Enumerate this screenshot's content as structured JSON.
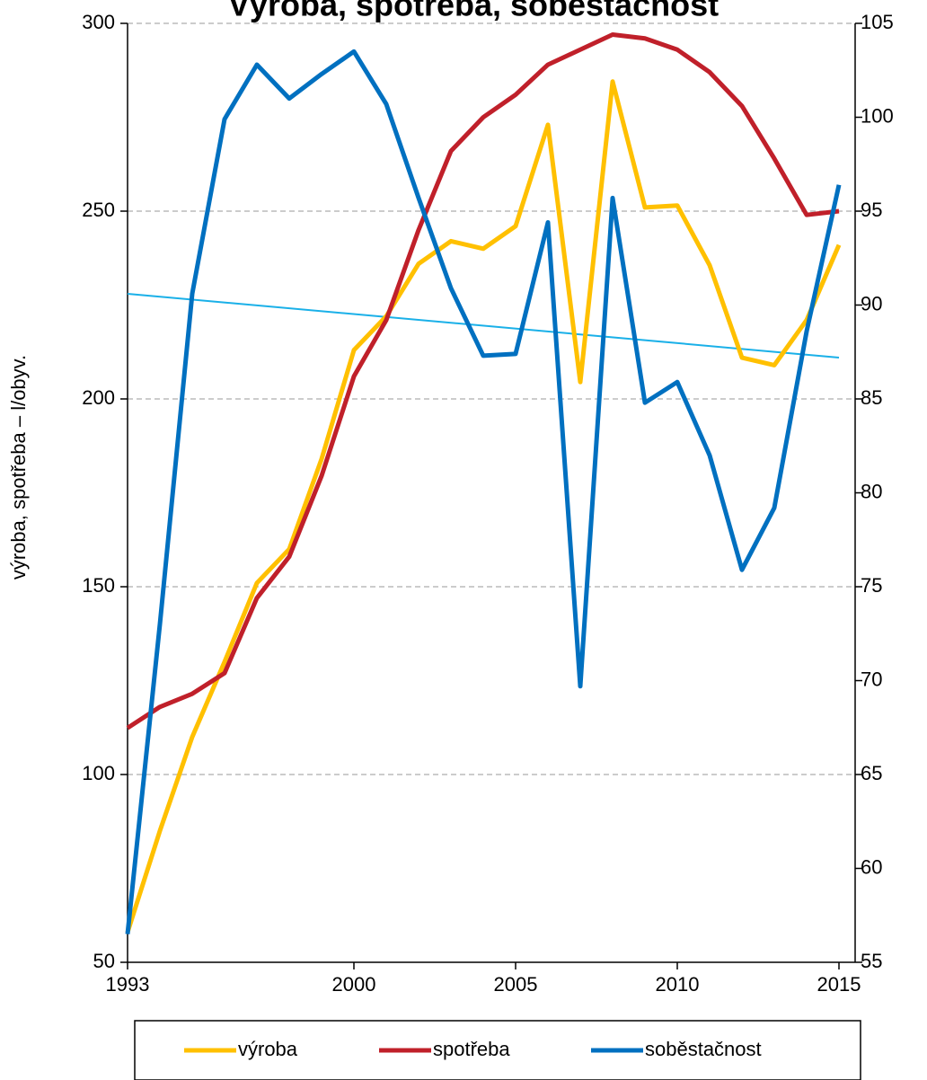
{
  "chart_data": {
    "type": "line",
    "title": "Výroba, spotřeba, soběstačnost",
    "y_label": "výroba, spotřeba – l/obyv.",
    "x": [
      1993,
      1994,
      1995,
      1996,
      1997,
      1998,
      1999,
      2000,
      2001,
      2002,
      2003,
      2004,
      2005,
      2006,
      2007,
      2008,
      2009,
      2010,
      2011,
      2012,
      2013,
      2014,
      2015
    ],
    "series": [
      {
        "name": "výroba",
        "color": "#FFC000",
        "values": [
          58,
          85,
          110,
          130,
          151,
          160,
          184,
          213,
          222,
          236,
          242,
          240,
          246,
          273,
          204.5,
          284.5,
          251,
          251.5,
          235.6,
          211,
          209,
          221,
          241
        ]
      },
      {
        "name": "spotřeba",
        "color": "#C0202A",
        "values": [
          112.4,
          118,
          121.5,
          127,
          147,
          158,
          179.5,
          206,
          221,
          245,
          266,
          275,
          281,
          289,
          293,
          297,
          296,
          293,
          287,
          278,
          264,
          249,
          250
        ]
      },
      {
        "name": "soběstačnost",
        "color": "#0070C0",
        "axis": "y2",
        "values": [
          56.5,
          73,
          90.6,
          99.9,
          102.8,
          101,
          102.3,
          103.5,
          100.7,
          95.7,
          90.9,
          87.3,
          87.4,
          94.4,
          69.7,
          95.7,
          84.8,
          85.9,
          82,
          75.9,
          79.2,
          88.6,
          96.4
        ]
      }
    ],
    "trendline": {
      "color": "#1AB0E8",
      "axis": "y2",
      "x": [
        1993,
        2015
      ],
      "values": [
        90.6,
        87.2
      ]
    },
    "xlim": [
      1993,
      2015.5
    ],
    "xticks": [
      1993,
      2000,
      2005,
      2010,
      2015
    ],
    "ylim": [
      50,
      300
    ],
    "yticks": [
      50,
      100,
      150,
      200,
      250,
      300
    ],
    "y2lim": [
      55,
      105
    ],
    "y2ticks": [
      55,
      60,
      65,
      70,
      75,
      80,
      85,
      90,
      95,
      100,
      105
    ],
    "grid": true,
    "legend": "bottom"
  }
}
